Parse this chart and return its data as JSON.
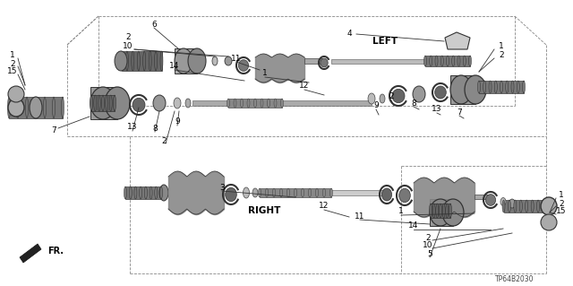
{
  "bg_color": "#ffffff",
  "diagram_code": "TP64B2030",
  "left_label": "LEFT",
  "right_label": "RIGHT",
  "fr_label": "FR.",
  "gray_dark": "#2a2a2a",
  "gray_mid": "#666666",
  "gray_light": "#aaaaaa",
  "gray_part": "#888888",
  "dashed_color": "#666666",
  "leader_color": "#333333"
}
